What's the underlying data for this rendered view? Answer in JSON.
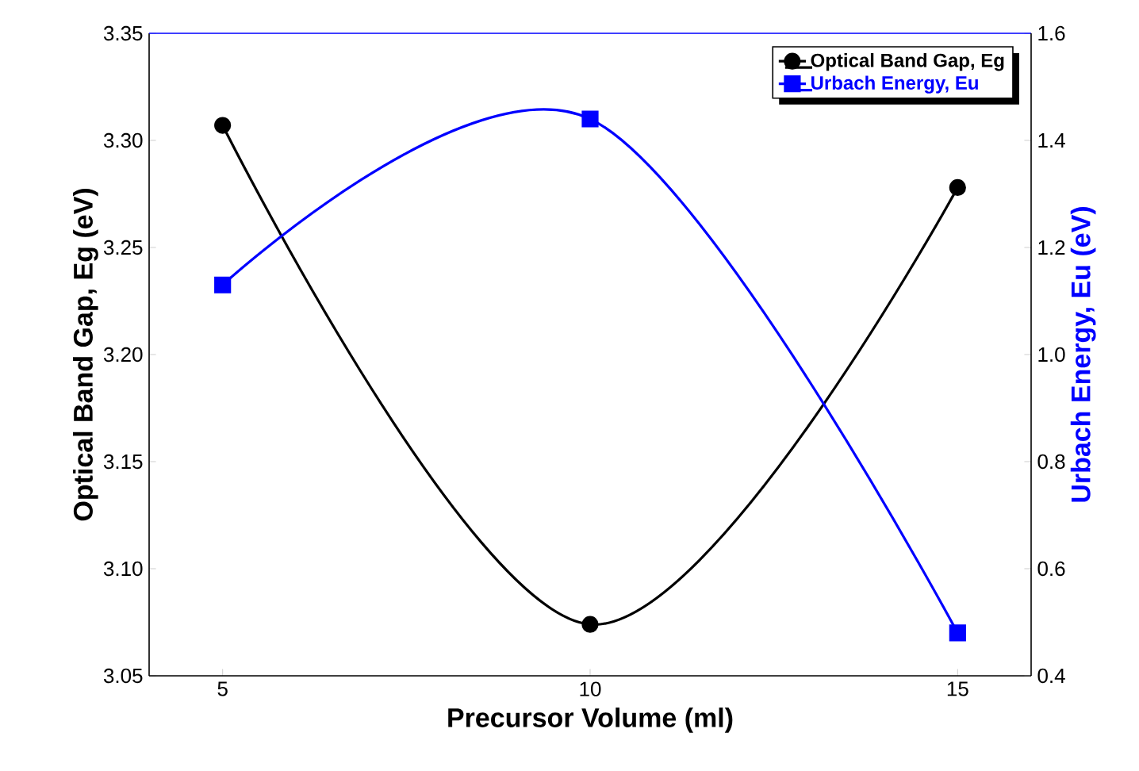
{
  "chart_data": {
    "type": "line",
    "xlabel": "Precursor Volume (ml)",
    "ylabel": "Optical Band Gap, Eg (eV)",
    "y2label": "Urbach Energy, Eu (eV)",
    "x": [
      5,
      10,
      15
    ],
    "xlim": [
      4,
      16
    ],
    "xticks": [
      5,
      10,
      15
    ],
    "ylim": [
      3.05,
      3.35
    ],
    "yticks": [
      {
        "value": 3.05,
        "label": "3.05"
      },
      {
        "value": 3.1,
        "label": "3.10"
      },
      {
        "value": 3.15,
        "label": "3.15"
      },
      {
        "value": 3.2,
        "label": "3.20"
      },
      {
        "value": 3.25,
        "label": "3.25"
      },
      {
        "value": 3.3,
        "label": "3.30"
      },
      {
        "value": 3.35,
        "label": "3.35"
      }
    ],
    "y2lim": [
      0.4,
      1.6
    ],
    "y2ticks": [
      0.4,
      0.6,
      0.8,
      {
        "value": 1.0,
        "label": "1.0"
      },
      1.2,
      1.4,
      1.6
    ],
    "series": [
      {
        "name": "Optical Band Gap, Eg",
        "color": "#000000",
        "values": [
          3.307,
          3.074,
          3.278
        ],
        "marker": "circle"
      },
      {
        "name": "Urbach Energy, Eu",
        "color": "#0000ff",
        "values": [
          1.13,
          1.44,
          0.48
        ],
        "marker": "square",
        "axis": "y2"
      }
    ],
    "legend": "top right",
    "grid": false,
    "line_style": "solid"
  }
}
